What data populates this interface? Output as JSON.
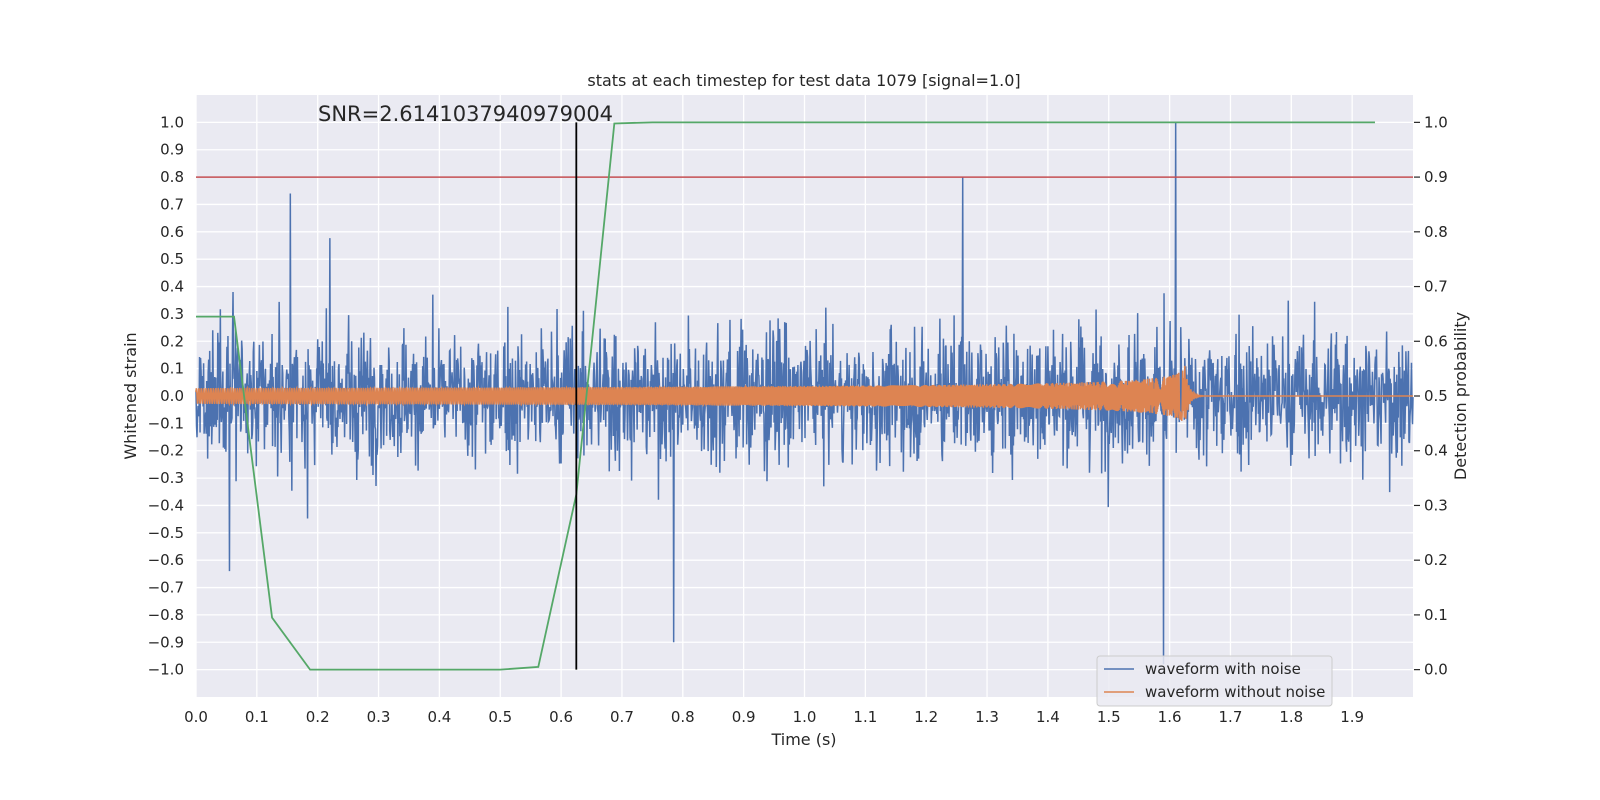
{
  "chart_data": {
    "type": "line",
    "title": "stats at each timestep for test data 1079 [signal=1.0]",
    "xlabel": "Time (s)",
    "ylabel_left": "Whitened strain",
    "ylabel_right": "Detection probability",
    "annotation": "SNR=2.6141037940979004",
    "xlim": [
      0.0,
      2.0
    ],
    "ylim_left": [
      -1.1,
      1.1
    ],
    "ylim_right": [
      -0.05,
      1.05
    ],
    "x_ticks": [
      0.0,
      0.1,
      0.2,
      0.3,
      0.4,
      0.5,
      0.6,
      0.7,
      0.8,
      0.9,
      1.0,
      1.1,
      1.2,
      1.3,
      1.4,
      1.5,
      1.6,
      1.7,
      1.8,
      1.9
    ],
    "x_tick_labels": [
      "0.0",
      "0.1",
      "0.2",
      "0.3",
      "0.4",
      "0.5",
      "0.6",
      "0.7",
      "0.8",
      "0.9",
      "1.0",
      "1.1",
      "1.2",
      "1.3",
      "1.4",
      "1.5",
      "1.6",
      "1.7",
      "1.8",
      "1.9"
    ],
    "y_left_ticks": [
      1.0,
      0.9,
      0.8,
      0.7,
      0.6,
      0.5,
      0.4,
      0.3,
      0.2,
      0.1,
      0.0,
      -0.1,
      -0.2,
      -0.3,
      -0.4,
      -0.5,
      -0.6,
      -0.7,
      -0.8,
      -0.9,
      -1.0
    ],
    "y_left_tick_labels": [
      "1.0",
      "0.9",
      "0.8",
      "0.7",
      "0.6",
      "0.5",
      "0.4",
      "0.3",
      "0.2",
      "0.1",
      "0.0",
      "−0.1",
      "−0.2",
      "−0.3",
      "−0.4",
      "−0.5",
      "−0.6",
      "−0.7",
      "−0.8",
      "−0.9",
      "−1.0"
    ],
    "y_right_ticks": [
      1.0,
      0.9,
      0.8,
      0.7,
      0.6,
      0.5,
      0.4,
      0.3,
      0.2,
      0.1,
      0.0
    ],
    "y_right_tick_labels": [
      "1.0",
      "0.9",
      "0.8",
      "0.7",
      "0.6",
      "0.5",
      "0.4",
      "0.3",
      "0.2",
      "0.1",
      "0.0"
    ],
    "grid": true,
    "legend_position": "bottom-right",
    "vertical_line_x": 0.625,
    "horizontal_threshold_y": 0.8,
    "colors": {
      "plot_background": "#eaeaf2",
      "grid": "#ffffff",
      "noisy": "#4c72b0",
      "clean": "#dd8452",
      "probability": "#55a868",
      "threshold": "#c44e52",
      "marker": "#000000"
    },
    "series": [
      {
        "name": "waveform with noise",
        "axis": "left",
        "description_points": "dense noise, amplitude mostly within ±0.5; peaks 0.74@0.155, 0.80@1.26, 1.0@1.61; troughs -0.64@0.055, -0.90@0.785, -0.98@1.59",
        "peaks": [
          {
            "x": 0.055,
            "y": -0.64
          },
          {
            "x": 0.155,
            "y": 0.74
          },
          {
            "x": 0.785,
            "y": -0.9
          },
          {
            "x": 1.26,
            "y": 0.8
          },
          {
            "x": 1.59,
            "y": -0.98
          },
          {
            "x": 1.61,
            "y": 1.0
          }
        ]
      },
      {
        "name": "waveform without noise",
        "axis": "left",
        "chirp": {
          "start": 0.0,
          "merger": 1.625,
          "end": 2.0,
          "max_amplitude": 0.11
        }
      },
      {
        "name": "detection probability",
        "axis": "right",
        "x": [
          0.0,
          0.0625,
          0.125,
          0.1875,
          0.25,
          0.3125,
          0.375,
          0.4375,
          0.5,
          0.5625,
          0.625,
          0.6875,
          0.75,
          0.8125,
          0.875,
          0.9375,
          1.0,
          1.0625,
          1.125,
          1.1875,
          1.25,
          1.3125,
          1.375,
          1.4375,
          1.5,
          1.5625,
          1.625,
          1.6875,
          1.75,
          1.8125,
          1.875,
          1.9375
        ],
        "y": [
          0.645,
          0.645,
          0.095,
          0.0,
          0.0,
          0.0,
          0.0,
          0.0,
          0.0,
          0.005,
          0.32,
          0.998,
          1.0,
          1.0,
          1.0,
          1.0,
          1.0,
          1.0,
          1.0,
          1.0,
          1.0,
          1.0,
          1.0,
          1.0,
          1.0,
          1.0,
          1.0,
          1.0,
          1.0,
          1.0,
          1.0,
          1.0
        ]
      }
    ]
  }
}
